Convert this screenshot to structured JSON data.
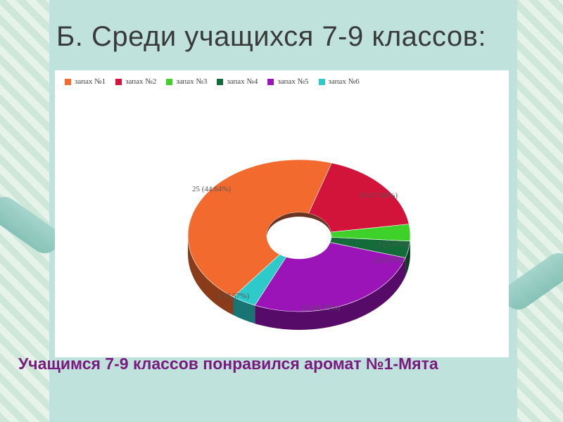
{
  "slide": {
    "title": "Б. Среди учащихся 7-9 классов:",
    "caption": "Учащимся 7-9 классов понравился аромат №1-Мята"
  },
  "chart_data": {
    "type": "pie",
    "style": "3d-donut",
    "legend_position": "top",
    "series": [
      {
        "name": "запах №1",
        "value": 25,
        "label": "25 (44.64%)",
        "color": "#f26a2e",
        "side_color": "#8a3b1a"
      },
      {
        "name": "запах №2",
        "value": 10,
        "label": "10 (17.86%)",
        "color": "#d2143a",
        "side_color": "#7a0d22"
      },
      {
        "name": "запах №3",
        "value": 2,
        "label": "2 (3.57%)",
        "color": "#3ed12a",
        "side_color": "#237a18"
      },
      {
        "name": "запах №4",
        "value": 2,
        "label": "2 (3.57%)",
        "color": "#146b3a",
        "side_color": "#0b3d21"
      },
      {
        "name": "запах №5",
        "value": 15,
        "label": "15 (26.79%)",
        "color": "#9a14b8",
        "side_color": "#560b68"
      },
      {
        "name": "запах №6",
        "value": 2,
        "label": "2 (3.57%)",
        "color": "#2ec9c9",
        "side_color": "#197474"
      }
    ]
  }
}
